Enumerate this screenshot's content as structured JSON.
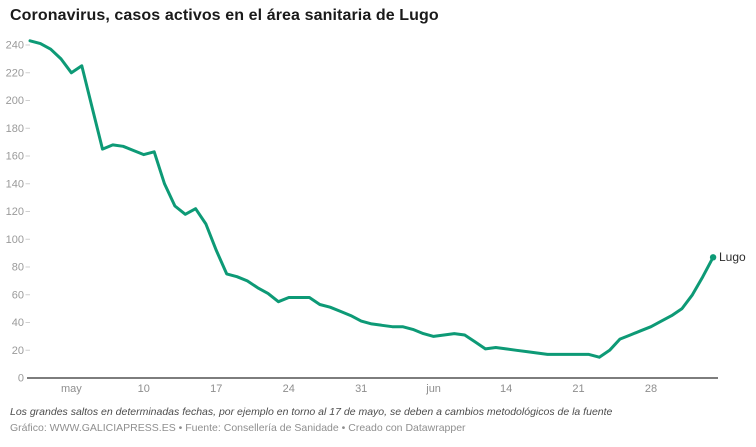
{
  "chart_data": {
    "type": "line",
    "title": "Coronavirus, casos activos en el área sanitaria de Lugo",
    "line_color": "#0d9a76",
    "grid": "none",
    "legend_position": "end-of-line label",
    "ylim": [
      0,
      250
    ],
    "y_ticks": [
      0,
      20,
      40,
      60,
      80,
      100,
      120,
      140,
      160,
      180,
      200,
      220,
      240
    ],
    "x_ticks": [
      {
        "label": "may",
        "index": 4
      },
      {
        "label": "10",
        "index": 11
      },
      {
        "label": "17",
        "index": 18
      },
      {
        "label": "24",
        "index": 25
      },
      {
        "label": "31",
        "index": 32
      },
      {
        "label": "jun",
        "index": 39
      },
      {
        "label": "14",
        "index": 46
      },
      {
        "label": "21",
        "index": 53
      },
      {
        "label": "28",
        "index": 60
      }
    ],
    "dates": [
      "29 abr",
      "30 abr",
      "1 may",
      "2 may",
      "3 may",
      "4 may",
      "5 may",
      "6 may",
      "7 may",
      "8 may",
      "9 may",
      "10 may",
      "11 may",
      "12 may",
      "13 may",
      "14 may",
      "15 may",
      "16 may",
      "17 may",
      "18 may",
      "19 may",
      "20 may",
      "21 may",
      "22 may",
      "23 may",
      "24 may",
      "25 may",
      "26 may",
      "27 may",
      "28 may",
      "29 may",
      "30 may",
      "31 may",
      "1 jun",
      "2 jun",
      "3 jun",
      "4 jun",
      "5 jun",
      "6 jun",
      "7 jun",
      "8 jun",
      "9 jun",
      "10 jun",
      "11 jun",
      "12 jun",
      "13 jun",
      "14 jun",
      "15 jun",
      "16 jun",
      "17 jun",
      "18 jun",
      "19 jun",
      "20 jun",
      "21 jun",
      "22 jun",
      "23 jun",
      "24 jun",
      "25 jun",
      "26 jun",
      "27 jun",
      "28 jun",
      "29 jun",
      "30 jun",
      "1 jul",
      "2 jul",
      "3 jul",
      "4 jul"
    ],
    "series": [
      {
        "name": "Lugo",
        "values": [
          243,
          241,
          237,
          230,
          220,
          225,
          195,
          165,
          168,
          167,
          164,
          161,
          163,
          140,
          124,
          118,
          122,
          111,
          92,
          75,
          73,
          70,
          65,
          61,
          55,
          58,
          58,
          58,
          53,
          51,
          48,
          45,
          41,
          39,
          38,
          37,
          37,
          35,
          32,
          30,
          31,
          32,
          31,
          26,
          21,
          22,
          21,
          20,
          19,
          18,
          17,
          17,
          17,
          17,
          17,
          15,
          20,
          28,
          31,
          34,
          37,
          41,
          45,
          50,
          60,
          73,
          87
        ]
      }
    ]
  },
  "footer": {
    "note": "Los grandes saltos en determinadas fechas, por ejemplo en torno al 17 de mayo, se deben a cambios metodológicos de la fuente",
    "credit": "Gráfico: WWW.GALICIAPRESS.ES • Fuente: Consellería de Sanidade • Creado con Datawrapper"
  }
}
